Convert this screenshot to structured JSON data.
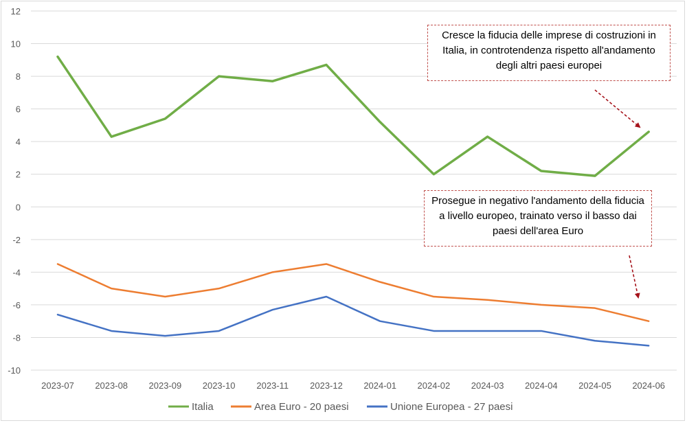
{
  "chart_data": {
    "type": "line",
    "categories": [
      "2023-07",
      "2023-08",
      "2023-09",
      "2023-10",
      "2023-11",
      "2023-12",
      "2024-01",
      "2024-02",
      "2024-03",
      "2024-04",
      "2024-05",
      "2024-06"
    ],
    "y_ticks": [
      "12",
      "10",
      "8",
      "6",
      "4",
      "2",
      "0",
      "-2",
      "-4",
      "-6",
      "-8",
      "-10"
    ],
    "ylim": [
      -10,
      12
    ],
    "grid": true,
    "legend_position": "bottom",
    "series": [
      {
        "name": "Italia",
        "color": "#70ad47",
        "values": [
          9.2,
          4.3,
          5.4,
          8.0,
          7.7,
          8.7,
          5.2,
          2.0,
          4.3,
          2.2,
          1.9,
          4.6
        ]
      },
      {
        "name": "Area Euro - 20 paesi",
        "color": "#ed7d31",
        "values": [
          -3.5,
          -5.0,
          -5.5,
          -5.0,
          -4.0,
          -3.5,
          -4.6,
          -5.5,
          -5.7,
          -6.0,
          -6.2,
          -7.0
        ]
      },
      {
        "name": "Unione Europea - 27 paesi",
        "color": "#4472c4",
        "values": [
          -6.6,
          -7.6,
          -7.9,
          -7.6,
          -6.3,
          -5.5,
          -7.0,
          -7.6,
          -7.6,
          -7.6,
          -8.2,
          -8.5
        ]
      }
    ],
    "annotations": [
      {
        "text": "Cresce la fiducia delle imprese di costruzioni in Italia, in controtendenza rispetto all'andamento degli altri paesi europei"
      },
      {
        "text": "Prosegue in negativo l'andamento della fiducia a livello europeo, trainato verso il basso dai paesi dell'area Euro"
      }
    ],
    "arrow_color": "#a5121a"
  }
}
